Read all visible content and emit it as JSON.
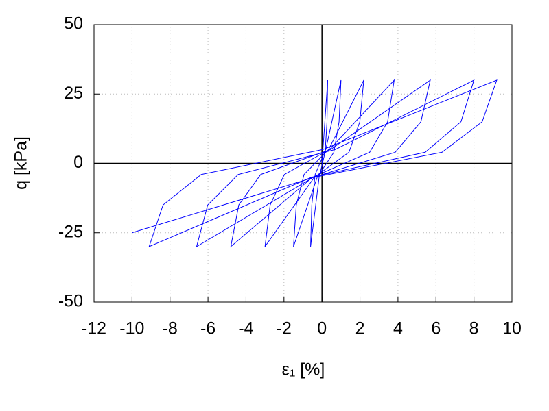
{
  "chart_data": {
    "type": "line",
    "xlabel": "ε₁ [%]",
    "ylabel": "q [kPa]",
    "xlim": [
      -12,
      10
    ],
    "ylim": [
      -50,
      50
    ],
    "xticks": [
      -12,
      -10,
      -8,
      -6,
      -4,
      -2,
      0,
      2,
      4,
      6,
      8,
      10
    ],
    "yticks": [
      -50,
      -25,
      0,
      25,
      50
    ],
    "grid": true,
    "series": [
      {
        "color": "#0000ff",
        "x": [
          0,
          0.3,
          0.264,
          0.165,
          -0.15,
          -0.6,
          -0.536,
          -0.36,
          0.2,
          1.0,
          0.9,
          0.625,
          -0.25,
          -1.5,
          -1.352,
          -0.945,
          0.35,
          2.2,
          1.992,
          1.42,
          -0.4,
          -3.0,
          -2.728,
          -1.98,
          0.4,
          3.8,
          3.456,
          2.51,
          -0.5,
          -4.8,
          -4.38,
          -3.225,
          0.45,
          5.7,
          5.208,
          3.855,
          -0.45,
          -6.6,
          -6.016,
          -4.41,
          0.7,
          8.0,
          7.316,
          5.435,
          -0.55,
          -9.1,
          -8.368,
          -6.355,
          0.05,
          9.2,
          8.432,
          6.32,
          -0.4,
          -10
        ],
        "values": [
          0,
          30,
          15,
          4,
          -5,
          -30,
          -15,
          -4,
          5,
          30,
          15,
          4,
          -5,
          -30,
          -15,
          -4,
          5,
          30,
          15,
          4,
          -5,
          -30,
          -15,
          -4,
          5,
          30,
          15,
          4,
          -5,
          -30,
          -15,
          -4,
          5,
          30,
          15,
          4,
          -5,
          -30,
          -15,
          -4,
          5,
          30,
          15,
          4,
          -5,
          -30,
          -15,
          -4,
          5,
          30,
          15,
          4,
          -5,
          -25
        ]
      }
    ]
  }
}
